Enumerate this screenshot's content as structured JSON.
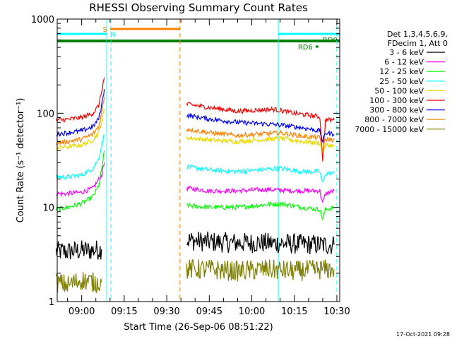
{
  "chart_data": {
    "type": "line",
    "title": "RHESSI Observing Summary Count Rates",
    "xlabel": "Start Time (26-Sep-06 08:51:22)",
    "ylabel": "Count Rate (s⁻¹ detector⁻¹)",
    "y_scale": "log",
    "ylim": [
      1,
      1000
    ],
    "xlim": [
      "08:51:22",
      "10:31:00"
    ],
    "x_ticks": [
      "09:00",
      "09:15",
      "09:30",
      "09:45",
      "10:00",
      "10:15",
      "10:30"
    ],
    "y_ticks": [
      "1",
      "10",
      "100",
      "1000"
    ],
    "timestamp": "17-Oct-2021 09:28",
    "legend": {
      "placement": "right",
      "header": [
        "Det 1,3,4,5,6,9,",
        "FDecim 1, Att 0"
      ]
    },
    "series": [
      {
        "name": "3 - 6 keV",
        "color": "#000000",
        "segments": [
          {
            "t": [
              "08:51",
              "08:55",
              "09:00",
              "09:04",
              "09:07"
            ],
            "y": [
              3.4,
              3.4,
              3.5,
              3.5,
              3.6
            ]
          },
          {
            "t": [
              "09:37",
              "09:45",
              "09:55",
              "10:05",
              "10:15",
              "10:25",
              "10:29"
            ],
            "y": [
              4.5,
              4.3,
              4.2,
              4.2,
              4.1,
              4.0,
              4.0
            ]
          }
        ]
      },
      {
        "name": "6 - 12 keV",
        "color": "#ff00ff",
        "segments": [
          {
            "t": [
              "08:51",
              "08:55",
              "09:00",
              "09:04",
              "09:07",
              "09:08"
            ],
            "y": [
              14,
              14,
              14.5,
              16,
              22,
              30
            ]
          },
          {
            "t": [
              "09:37",
              "09:45",
              "09:55",
              "10:05",
              "10:15",
              "10:24",
              "10:25",
              "10:26",
              "10:29"
            ],
            "y": [
              16,
              15,
              15,
              15.5,
              15,
              15,
              11,
              14,
              15
            ]
          }
        ]
      },
      {
        "name": "12 - 25 keV",
        "color": "#00ff00",
        "segments": [
          {
            "t": [
              "08:51",
              "08:55",
              "09:00",
              "09:04",
              "09:06",
              "09:07",
              "09:08"
            ],
            "y": [
              9.5,
              10,
              11,
              13,
              17,
              25,
              40
            ]
          },
          {
            "t": [
              "09:37",
              "09:45",
              "09:55",
              "10:02",
              "10:10",
              "10:18",
              "10:24",
              "10:25",
              "10:26",
              "10:29"
            ],
            "y": [
              10.5,
              10,
              10,
              10.5,
              11,
              10,
              9.5,
              7.5,
              9.5,
              10
            ]
          }
        ]
      },
      {
        "name": "25 - 50 keV",
        "color": "#00ffff",
        "segments": [
          {
            "t": [
              "08:51",
              "08:55",
              "09:00",
              "09:04",
              "09:06",
              "09:07",
              "09:08"
            ],
            "y": [
              21,
              21,
              22,
              26,
              33,
              45,
              60
            ]
          },
          {
            "t": [
              "09:37",
              "09:45",
              "09:55",
              "10:02",
              "10:10",
              "10:18",
              "10:24",
              "10:25",
              "10:26",
              "10:29"
            ],
            "y": [
              27,
              25,
              24,
              25,
              26,
              24,
              24,
              18,
              23,
              23
            ]
          }
        ]
      },
      {
        "name": "50 - 100 keV",
        "color": "#e6d800",
        "segments": [
          {
            "t": [
              "08:51",
              "08:55",
              "09:00",
              "09:04",
              "09:06",
              "09:07",
              "09:08"
            ],
            "y": [
              43,
              44,
              46,
              52,
              62,
              80,
              110
            ]
          },
          {
            "t": [
              "09:37",
              "09:45",
              "09:55",
              "10:02",
              "10:10",
              "10:18",
              "10:24",
              "10:25",
              "10:26",
              "10:29"
            ],
            "y": [
              55,
              52,
              50,
              52,
              54,
              50,
              48,
              38,
              46,
              45
            ]
          }
        ]
      },
      {
        "name": "100 - 300 keV",
        "color": "#ff0000",
        "segments": [
          {
            "t": [
              "08:51",
              "08:55",
              "09:00",
              "09:04",
              "09:06",
              "09:07",
              "09:08"
            ],
            "y": [
              84,
              86,
              90,
              100,
              120,
              170,
              240
            ]
          },
          {
            "t": [
              "09:37",
              "09:45",
              "09:55",
              "10:02",
              "10:08",
              "10:15",
              "10:24",
              "10:25",
              "10:26",
              "10:29"
            ],
            "y": [
              125,
              115,
              105,
              108,
              110,
              100,
              92,
              32,
              85,
              85
            ]
          }
        ]
      },
      {
        "name": "300 - 800 keV",
        "color": "#0000ff",
        "segments": [
          {
            "t": [
              "08:51",
              "08:55",
              "09:00",
              "09:04",
              "09:06",
              "09:07",
              "09:08"
            ],
            "y": [
              60,
              62,
              65,
              72,
              88,
              120,
              180
            ]
          },
          {
            "t": [
              "09:37",
              "09:45",
              "09:55",
              "10:02",
              "10:10",
              "10:18",
              "10:24",
              "10:25",
              "10:26",
              "10:29"
            ],
            "y": [
              95,
              87,
              80,
              78,
              75,
              70,
              65,
              50,
              62,
              60
            ]
          }
        ]
      },
      {
        "name": "800 - 7000 keV",
        "color": "#ff8000",
        "segments": [
          {
            "t": [
              "08:51",
              "08:55",
              "09:00",
              "09:04",
              "09:06",
              "09:07",
              "09:08"
            ],
            "y": [
              48,
              50,
              53,
              60,
              72,
              100,
              150
            ]
          },
          {
            "t": [
              "09:37",
              "09:45",
              "09:55",
              "10:02",
              "10:10",
              "10:18",
              "10:24",
              "10:25",
              "10:26",
              "10:29"
            ],
            "y": [
              68,
              62,
              58,
              60,
              62,
              57,
              55,
              40,
              53,
              52
            ]
          }
        ]
      },
      {
        "name": "7000 - 15000 keV",
        "color": "#808000",
        "segments": [
          {
            "t": [
              "08:51",
              "08:55",
              "09:00",
              "09:04",
              "09:07"
            ],
            "y": [
              1.6,
              1.5,
              1.7,
              1.6,
              1.6
            ]
          },
          {
            "t": [
              "09:37",
              "09:45",
              "09:55",
              "10:05",
              "10:15",
              "10:25",
              "10:29"
            ],
            "y": [
              2.2,
              2.2,
              2.1,
              2.2,
              2.1,
              2.2,
              2.2
            ]
          }
        ]
      }
    ],
    "vertical_lines": [
      {
        "t": "09:08:50",
        "color": "#00ffff",
        "style": "solid"
      },
      {
        "t": "09:10:20",
        "color": "#00ffff",
        "style": "dashed"
      },
      {
        "t": "09:34:40",
        "color": "#ff8000",
        "style": "dashed"
      },
      {
        "t": "10:09:20",
        "color": "#00ffff",
        "style": "solid"
      },
      {
        "t": "10:30:00",
        "color": "#00ffff",
        "style": "dashed"
      }
    ],
    "flag_bars": [
      {
        "label": "S",
        "color": "#ff8000",
        "t0": "09:10:00",
        "t1": "09:34:40",
        "level": 1
      },
      {
        "label": "N",
        "color": "#00ffff",
        "t0": "08:51:22",
        "t1": "09:08:50",
        "level": 2
      },
      {
        "label": "",
        "color": "#00ffff",
        "t0": "10:09:20",
        "t1": "10:31:00",
        "level": 2
      },
      {
        "label": "",
        "color": "#008000",
        "t0": "08:51:22",
        "t1": "10:31:00",
        "level": 3
      },
      {
        "label": "RD0",
        "color": "#008000",
        "t0": "10:23:00",
        "t1": "10:24:30",
        "level": 4
      },
      {
        "label": "RD6",
        "color": "#008000",
        "t0": "10:22:30",
        "t1": "10:23:30",
        "level": 5
      }
    ]
  }
}
